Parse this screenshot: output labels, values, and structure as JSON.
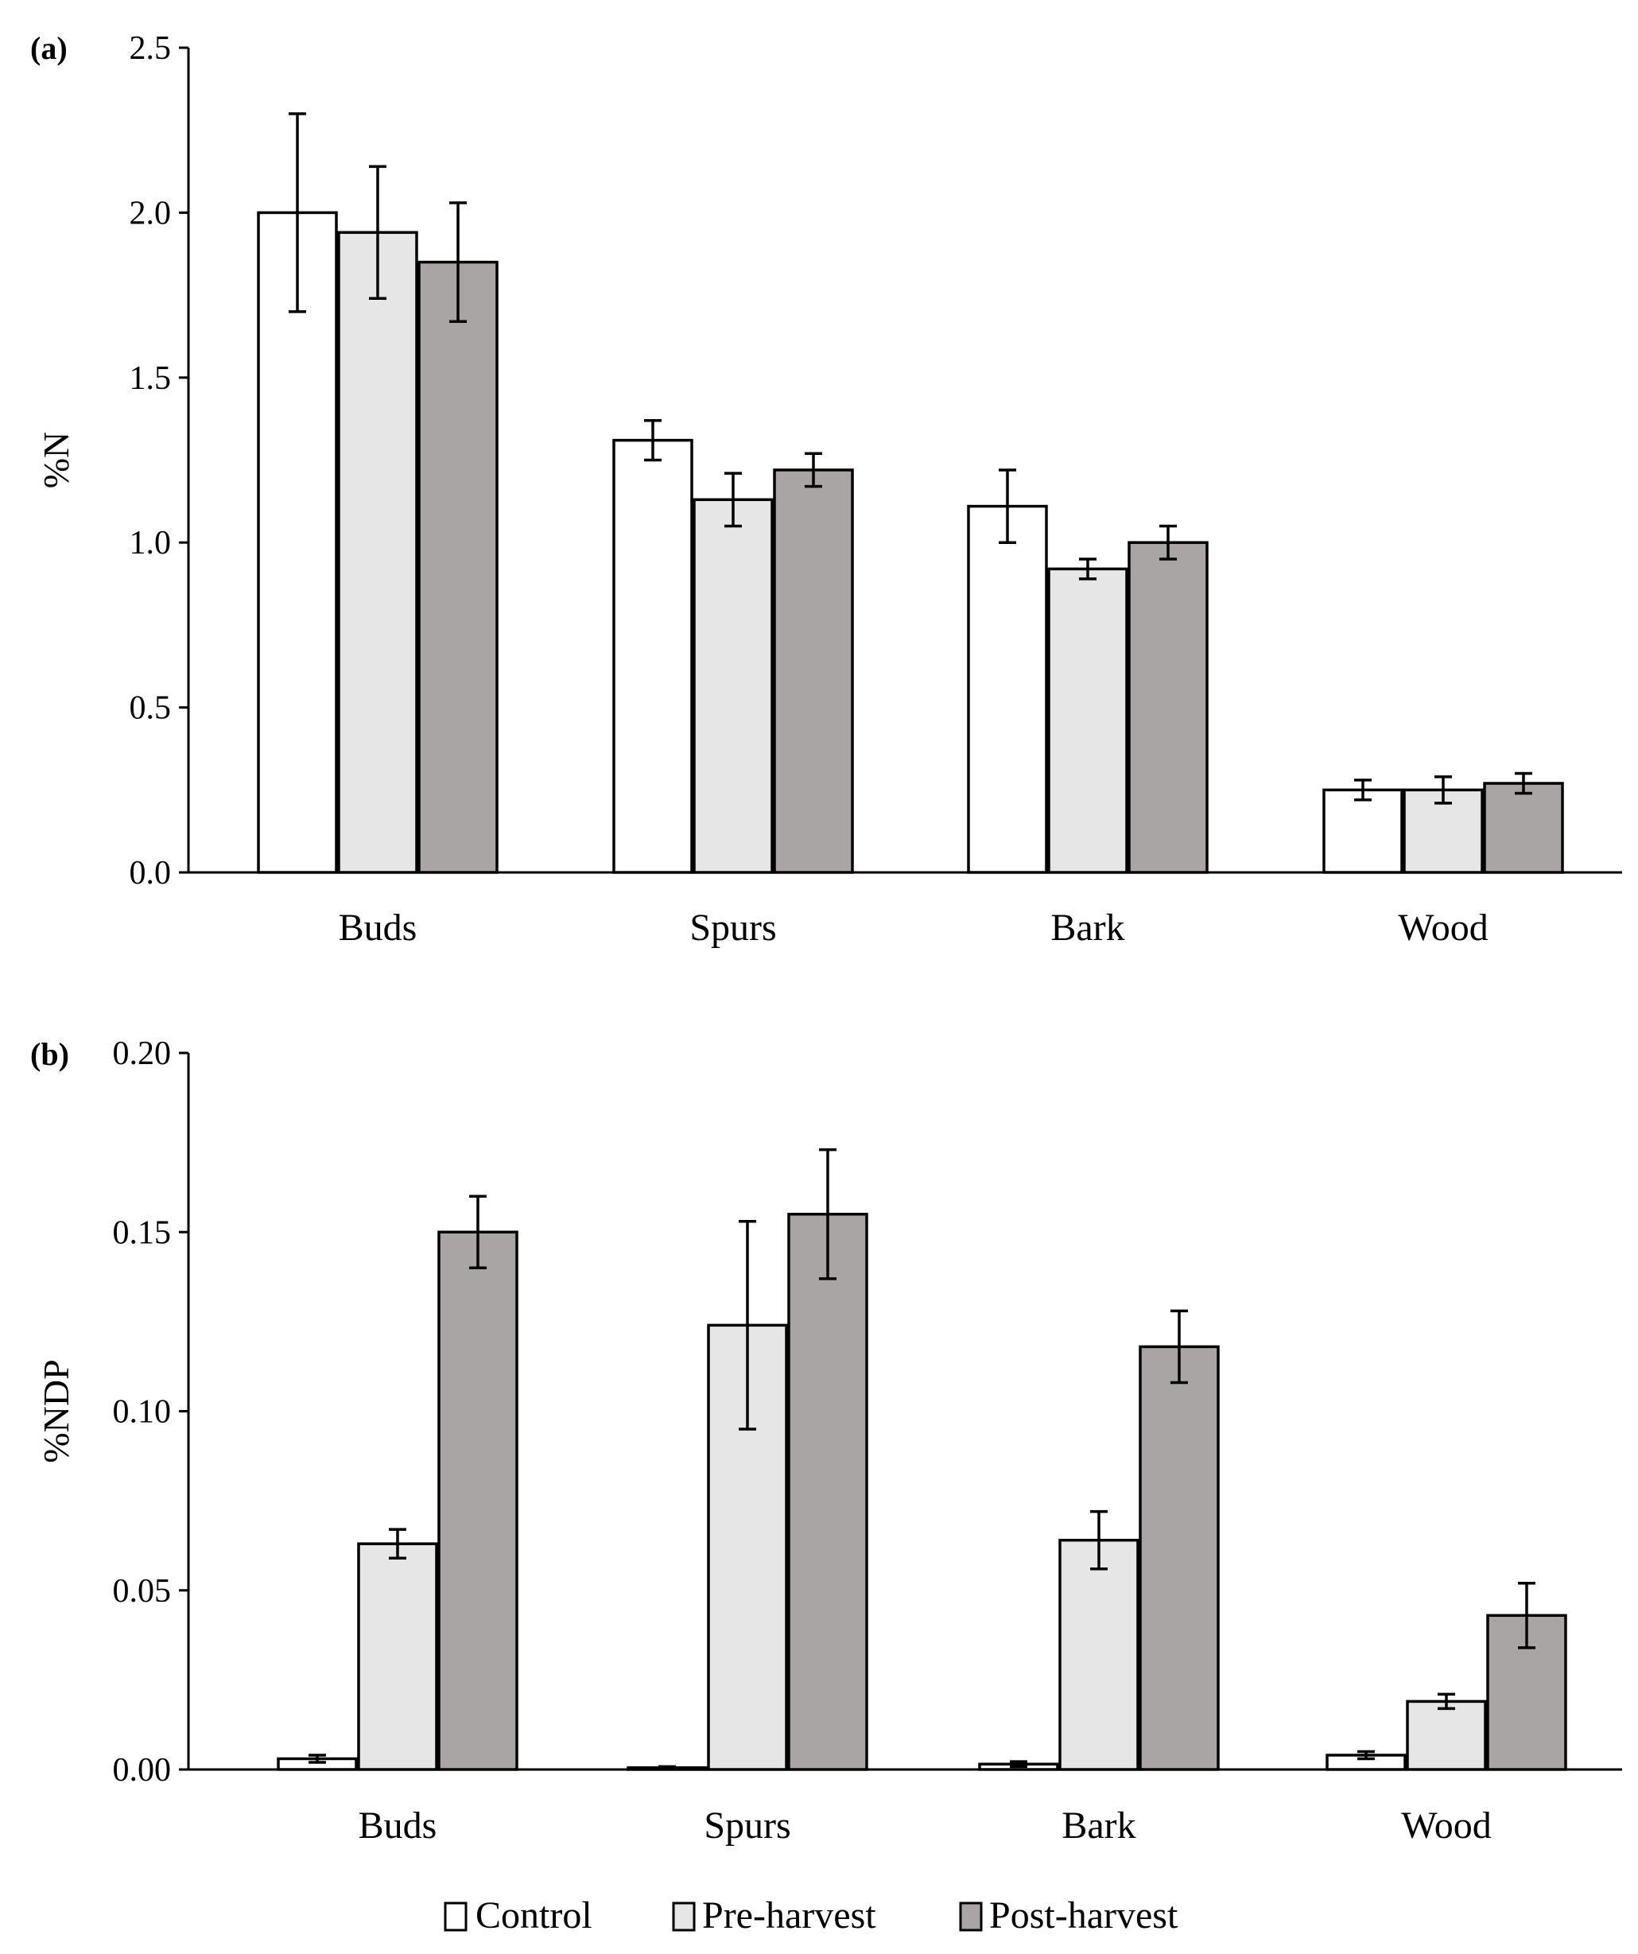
{
  "legend": [
    {
      "name": "Control",
      "color": "#ffffff"
    },
    {
      "name": "Pre-harvest",
      "color": "#e6e6e6"
    },
    {
      "name": "Post-harvest",
      "color": "#a9a5a4"
    }
  ],
  "chart_data": [
    {
      "type": "bar",
      "panel_label": "(a)",
      "ylabel": "%N",
      "ylim": [
        0,
        2.5
      ],
      "yticks": [
        "0.0",
        "0.5",
        "1.0",
        "1.5",
        "2.0",
        "2.5"
      ],
      "categories": [
        "Buds",
        "Spurs",
        "Bark",
        "Wood"
      ],
      "series": [
        {
          "name": "Control",
          "values": [
            2.0,
            1.31,
            1.11,
            0.25
          ],
          "errors": [
            0.3,
            0.06,
            0.11,
            0.03
          ]
        },
        {
          "name": "Pre-harvest",
          "values": [
            1.94,
            1.13,
            0.92,
            0.25
          ],
          "errors": [
            0.2,
            0.08,
            0.03,
            0.04
          ]
        },
        {
          "name": "Post-harvest",
          "values": [
            1.85,
            1.22,
            1.0,
            0.27
          ],
          "errors": [
            0.18,
            0.05,
            0.05,
            0.03
          ]
        }
      ]
    },
    {
      "type": "bar",
      "panel_label": "(b)",
      "ylabel": "%NDP",
      "ylim": [
        0,
        0.2
      ],
      "yticks": [
        "0.00",
        "0.05",
        "0.10",
        "0.15",
        "0.20"
      ],
      "categories": [
        "Buds",
        "Spurs",
        "Bark",
        "Wood"
      ],
      "series": [
        {
          "name": "Control",
          "values": [
            0.003,
            0.0005,
            0.0015,
            0.004
          ],
          "errors": [
            0.001,
            0.0003,
            0.0007,
            0.001
          ]
        },
        {
          "name": "Pre-harvest",
          "values": [
            0.063,
            0.124,
            0.064,
            0.019
          ],
          "errors": [
            0.004,
            0.029,
            0.008,
            0.002
          ]
        },
        {
          "name": "Post-harvest",
          "values": [
            0.15,
            0.155,
            0.118,
            0.043
          ],
          "errors": [
            0.01,
            0.018,
            0.01,
            0.009
          ]
        }
      ]
    }
  ]
}
